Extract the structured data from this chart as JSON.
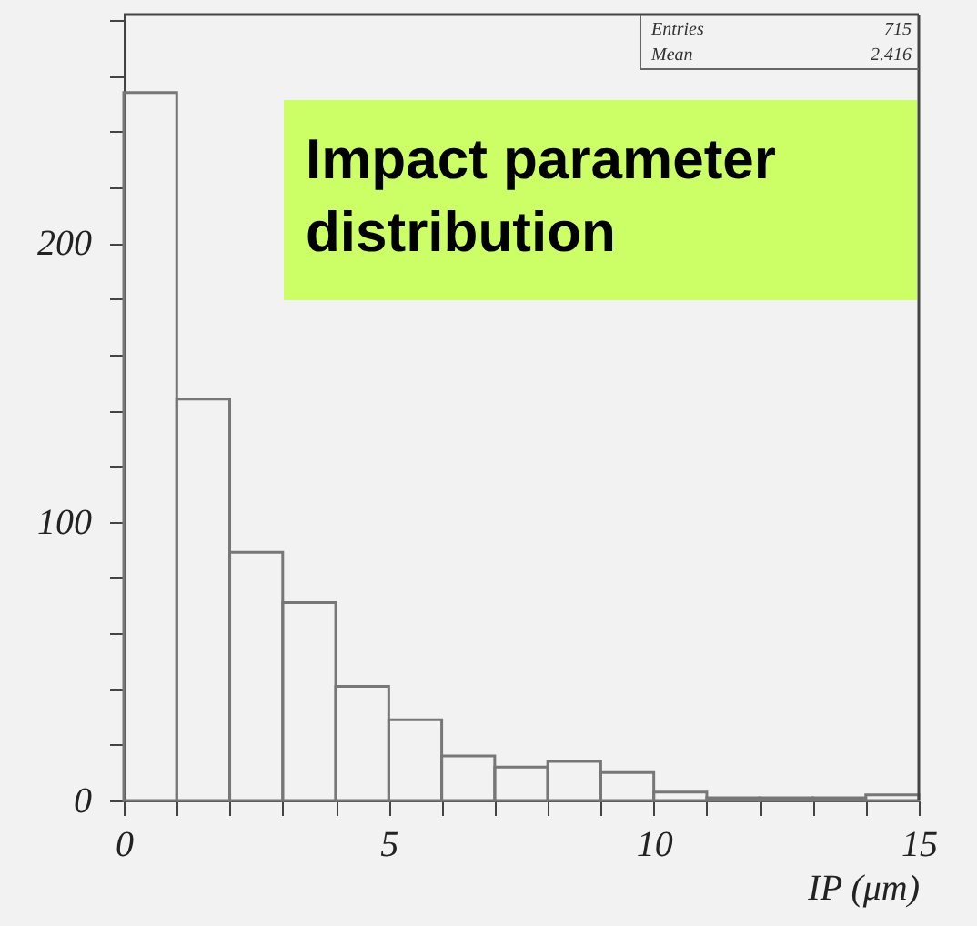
{
  "chart_data": {
    "type": "histogram",
    "title": "Impact parameter\ndistribution",
    "xlabel": "IP (μm)",
    "bins": [
      0,
      1,
      2,
      3,
      4,
      5,
      6,
      7,
      8,
      9,
      10,
      11,
      12,
      13,
      14,
      15
    ],
    "values": [
      254,
      144,
      89,
      71,
      41,
      29,
      16,
      12,
      14,
      10,
      3,
      1,
      1,
      1,
      2
    ],
    "color": "#777777",
    "annotations": [
      "Entries",
      "715",
      "Mean",
      "2.416"
    ],
    "xlim": [
      0,
      15
    ],
    "ylim": [
      0,
      282
    ],
    "xticks": [
      0,
      {
        "value": 1,
        "label": null
      },
      {
        "value": 2,
        "label": null
      },
      {
        "value": 3,
        "label": null
      },
      {
        "value": 4,
        "label": null
      },
      5,
      {
        "value": 6,
        "label": null
      },
      {
        "value": 7,
        "label": null
      },
      {
        "value": 8,
        "label": null
      },
      {
        "value": 9,
        "label": null
      },
      10,
      {
        "value": 11,
        "label": null
      },
      {
        "value": 12,
        "label": null
      },
      {
        "value": 13,
        "label": null
      },
      {
        "value": 14,
        "label": null
      },
      15
    ],
    "yticks": [
      0,
      {
        "value": 20,
        "label": null
      },
      {
        "value": 40,
        "label": null
      },
      {
        "value": 60,
        "label": null
      },
      {
        "value": 80,
        "label": null
      },
      100,
      {
        "value": 120,
        "label": null
      },
      {
        "value": 140,
        "label": null
      },
      {
        "value": 160,
        "label": null
      },
      {
        "value": 180,
        "label": null
      },
      200,
      {
        "value": 220,
        "label": null
      },
      {
        "value": 240,
        "label": null
      },
      {
        "value": 260,
        "label": null
      },
      {
        "value": 280,
        "label": null
      }
    ],
    "grid": false
  }
}
